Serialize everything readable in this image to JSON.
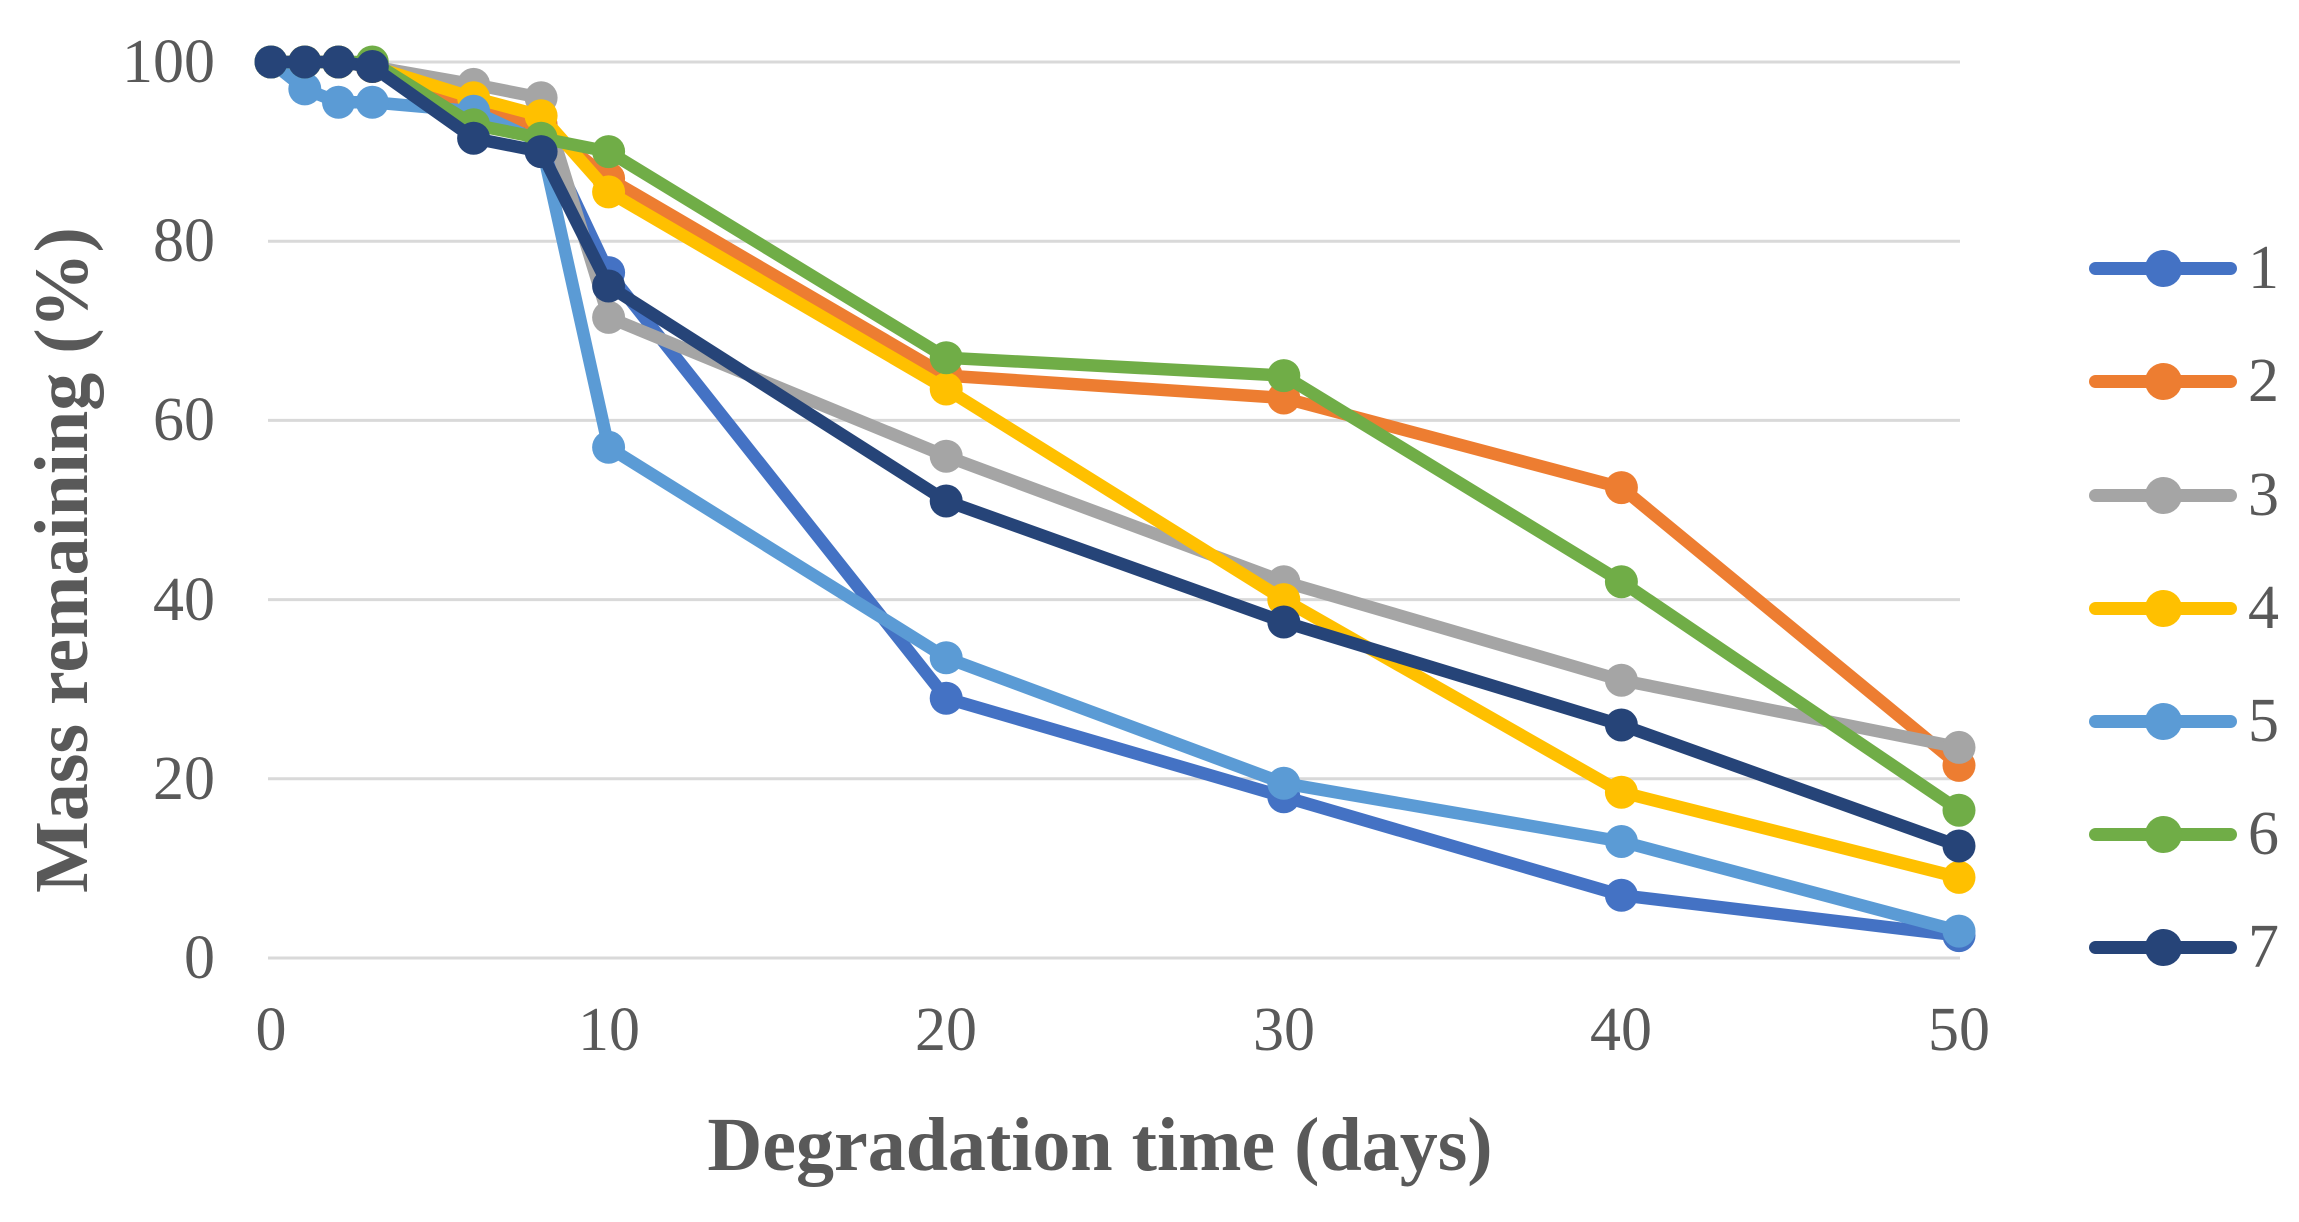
{
  "chart_data": {
    "type": "line",
    "title": "",
    "xlabel": "Degradation time (days)",
    "ylabel": "Mass remaining (%)",
    "x": [
      0,
      1,
      2,
      3,
      6,
      8,
      10,
      20,
      30,
      40,
      50
    ],
    "series": [
      {
        "name": "1",
        "color": "#4472C4",
        "values": [
          100,
          100,
          100,
          99.5,
          93,
          92.5,
          76.5,
          29,
          18,
          7,
          2.5
        ]
      },
      {
        "name": "2",
        "color": "#ED7D31",
        "values": [
          100,
          100,
          100,
          99.5,
          94.5,
          93,
          87,
          65,
          62.5,
          52.5,
          21.5
        ]
      },
      {
        "name": "3",
        "color": "#A5A5A5",
        "values": [
          100,
          100,
          100,
          99.5,
          97.5,
          96,
          71.5,
          56,
          42,
          31,
          23.5
        ]
      },
      {
        "name": "4",
        "color": "#FFC000",
        "values": [
          100,
          100,
          100,
          99.5,
          96,
          94,
          85.5,
          63.5,
          40,
          18.5,
          9
        ]
      },
      {
        "name": "5",
        "color": "#5B9BD5",
        "values": [
          100,
          97,
          95.5,
          95.5,
          94.5,
          91,
          57,
          33.5,
          19.5,
          13,
          3
        ]
      },
      {
        "name": "6",
        "color": "#70AD47",
        "values": [
          100,
          100,
          100,
          100,
          93,
          91.5,
          90,
          67,
          65,
          42,
          16.5
        ]
      },
      {
        "name": "7",
        "color": "#264478",
        "values": [
          100,
          100,
          100,
          99.5,
          91.5,
          90,
          75,
          51,
          37.5,
          26,
          12.5
        ]
      }
    ],
    "x_ticks": [
      "0",
      "10",
      "20",
      "30",
      "40",
      "50"
    ],
    "y_ticks": [
      "100",
      "80",
      "60",
      "40",
      "20",
      "0"
    ],
    "y_gridline_values": [
      100,
      80,
      60,
      40,
      20,
      0
    ],
    "xlim": [
      0,
      50
    ],
    "ylim": [
      0,
      100
    ],
    "grid": true,
    "legend_position": "right",
    "gridline_color": "#D9D9D9",
    "text_color": "#595959"
  }
}
